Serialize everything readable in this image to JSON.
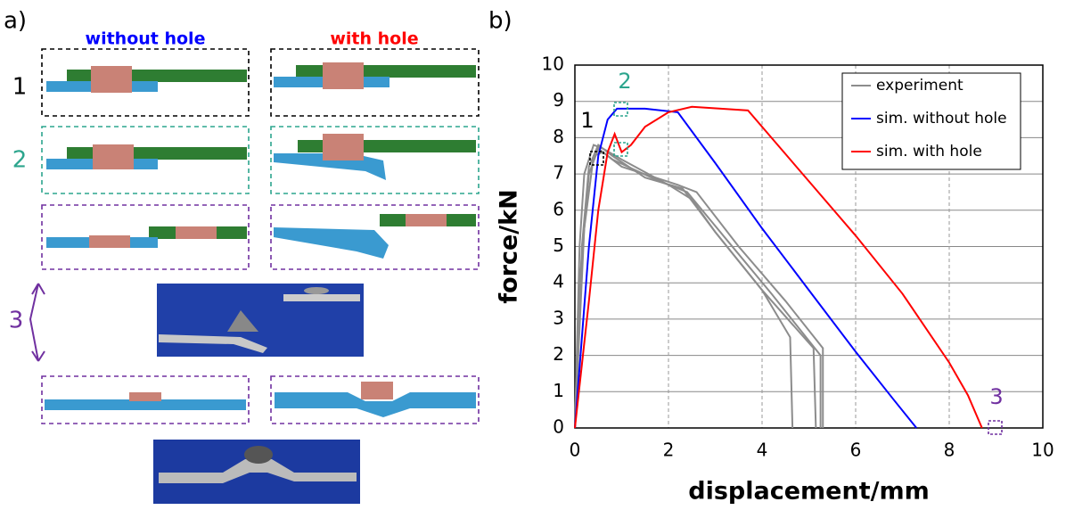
{
  "panel_a": {
    "label": "a)",
    "columns": [
      "without hole",
      "with hole"
    ],
    "rows": [
      "1",
      "2",
      "3"
    ]
  },
  "chart_data": {
    "type": "line",
    "panel_label": "b)",
    "x_label": "displacement/mm",
    "y_label": "force/kN",
    "xlim": [
      0,
      10
    ],
    "ylim": [
      0,
      10
    ],
    "xticks": [
      0,
      2,
      4,
      6,
      8,
      10
    ],
    "yticks": [
      0,
      1,
      2,
      3,
      4,
      5,
      6,
      7,
      8,
      9,
      10
    ],
    "grid": true,
    "legend": "upper right",
    "annotations": [
      "1",
      "2",
      "3"
    ],
    "series": [
      {
        "name": "experiment",
        "color": "#8c8c8c",
        "curves": [
          {
            "x": [
              0,
              0.1,
              0.2,
              0.4,
              0.6,
              1,
              2,
              2.5,
              3,
              4,
              4.6,
              4.65
            ],
            "values": [
              0,
              5,
              7,
              7.8,
              7.7,
              7.4,
              6.7,
              6.3,
              5.4,
              3.8,
              2.5,
              0
            ]
          },
          {
            "x": [
              0,
              0.15,
              0.3,
              0.5,
              0.8,
              1.5,
              2.3,
              3,
              4,
              5.1,
              5.15
            ],
            "values": [
              0,
              5,
              7.2,
              7.8,
              7.5,
              6.9,
              6.6,
              5.4,
              3.8,
              2.2,
              0
            ]
          },
          {
            "x": [
              0,
              0.2,
              0.4,
              0.6,
              1,
              2.2,
              2.6,
              3.5,
              4.5,
              5.3,
              5.3
            ],
            "values": [
              0,
              5.5,
              7.5,
              7.6,
              7.2,
              6.7,
              6.5,
              5,
              3.5,
              2.2,
              0
            ]
          },
          {
            "x": [
              0,
              0.1,
              0.3,
              0.5,
              0.8,
              1.8,
              2.4,
              3.3,
              4.2,
              5.25,
              5.25
            ],
            "values": [
              0,
              4,
              7,
              7.7,
              7.4,
              6.8,
              6.5,
              5.1,
              3.7,
              2,
              0
            ]
          }
        ]
      },
      {
        "name": "sim. without hole",
        "color": "#0000ff",
        "x": [
          0,
          0.3,
          0.5,
          0.7,
          0.9,
          1.5,
          2.2,
          3,
          4,
          5,
          6,
          6.8,
          7.3
        ],
        "values": [
          0,
          5,
          7.5,
          8.5,
          8.8,
          8.8,
          8.7,
          7.3,
          5.5,
          3.8,
          2.1,
          0.8,
          0
        ]
      },
      {
        "name": "sim. with hole",
        "color": "#ff0000",
        "x": [
          0,
          0.3,
          0.5,
          0.7,
          0.85,
          1,
          1.2,
          1.5,
          2,
          2.5,
          3.7,
          5,
          6,
          7,
          8,
          8.4,
          8.7
        ],
        "values": [
          0,
          3.5,
          6,
          7.6,
          8.1,
          7.6,
          7.8,
          8.3,
          8.7,
          8.85,
          8.75,
          6.8,
          5.3,
          3.7,
          1.8,
          0.9,
          0
        ]
      }
    ]
  }
}
